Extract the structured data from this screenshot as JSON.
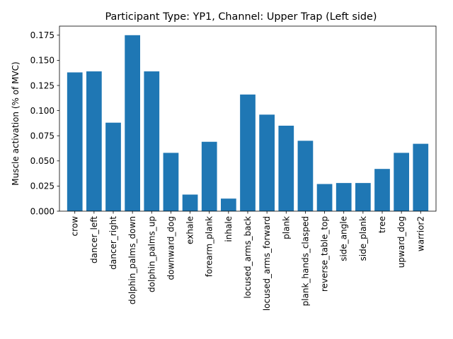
{
  "chart_data": {
    "type": "bar",
    "title": "Participant Type: YP1, Channel: Upper Trap (Left side)",
    "xlabel": "",
    "ylabel": "Muscle activation (% of MVC)",
    "ylim": [
      0,
      0.184
    ],
    "yticks": [
      "0.000",
      "0.025",
      "0.050",
      "0.075",
      "0.100",
      "0.125",
      "0.150",
      "0.175"
    ],
    "grid": false,
    "bar_color": "#1f77b4",
    "categories": [
      "crow",
      "dancer_left",
      "dancer_right",
      "dolphin_palms_down",
      "dolphin_palms_up",
      "downward_dog",
      "exhale",
      "forearm_plank",
      "inhale",
      "locused_arms_back",
      "locused_arms_forward",
      "plank",
      "plank_hands_clasped",
      "reverse_table_top",
      "side_angle",
      "side_plank",
      "tree",
      "upward_dog",
      "warrior2"
    ],
    "values": [
      0.138,
      0.139,
      0.088,
      0.175,
      0.139,
      0.058,
      0.0165,
      0.069,
      0.0125,
      0.116,
      0.096,
      0.085,
      0.07,
      0.027,
      0.028,
      0.028,
      0.042,
      0.058,
      0.067
    ]
  }
}
